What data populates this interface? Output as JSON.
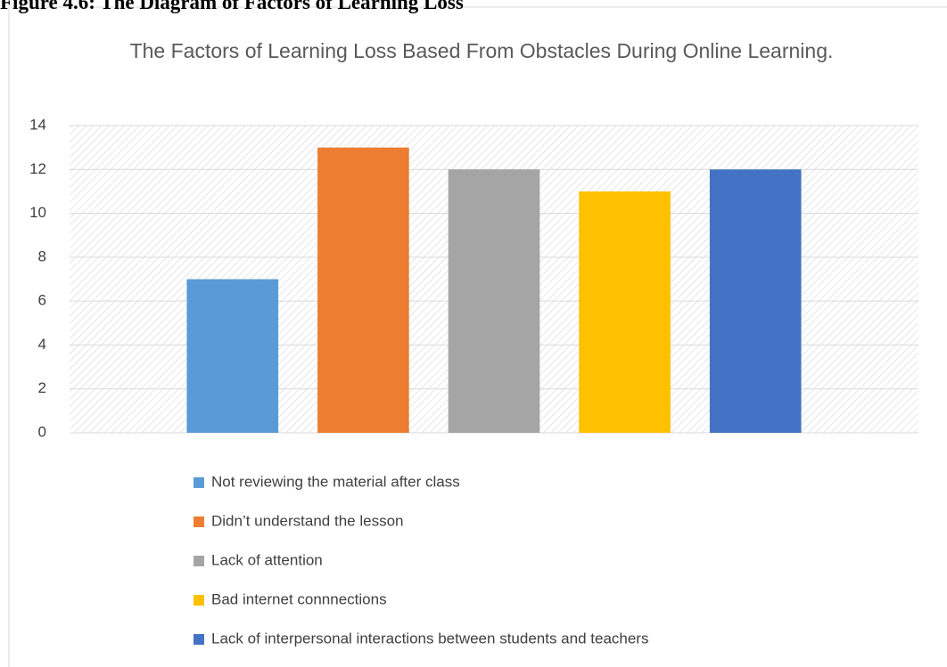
{
  "caption": "Figure 4.6: The Diagram of Factors of Learning Loss",
  "chart_data": {
    "type": "bar",
    "title": "The Factors of Learning Loss Based From Obstacles During Online Learning.",
    "categories": [
      null
    ],
    "series": [
      {
        "name": "Not reviewing the material after class",
        "color": "#5b9bd5",
        "values": [
          7
        ]
      },
      {
        "name": "Didn’t understand the lesson",
        "color": "#ed7d31",
        "values": [
          13
        ]
      },
      {
        "name": "Lack of attention",
        "color": "#a5a5a5",
        "values": [
          12
        ]
      },
      {
        "name": "Bad internet connnections",
        "color": "#ffc000",
        "values": [
          11
        ]
      },
      {
        "name": "Lack of interpersonal interactions between students and teachers",
        "color": "#4472c4",
        "values": [
          12
        ]
      }
    ],
    "ylim": [
      0,
      14
    ],
    "yticks": [
      0,
      2,
      4,
      6,
      8,
      10,
      12,
      14
    ],
    "grid": true,
    "legend": "bottom"
  }
}
